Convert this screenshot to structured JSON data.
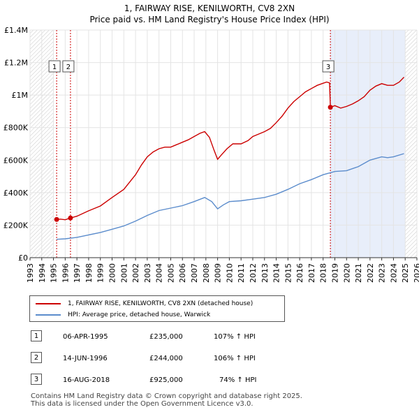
{
  "title_line1": "1, FAIRWAY RISE, KENILWORTH, CV8 2XN",
  "title_line2": "Price paid vs. HM Land Registry's House Price Index (HPI)",
  "colors": {
    "property": "#cc0000",
    "hpi": "#5b8ccc",
    "band": "#e8eefa",
    "marker_line": "#cc0000"
  },
  "chart_data": {
    "type": "line",
    "xlim": [
      1993,
      2026
    ],
    "ylim": [
      0,
      1400000
    ],
    "x_ticks": [
      "1993",
      "1994",
      "1995",
      "1996",
      "1997",
      "1998",
      "1999",
      "2000",
      "2001",
      "2002",
      "2003",
      "2004",
      "2005",
      "2006",
      "2007",
      "2008",
      "2009",
      "2010",
      "2011",
      "2012",
      "2013",
      "2014",
      "2015",
      "2016",
      "2017",
      "2018",
      "2019",
      "2020",
      "2021",
      "2022",
      "2023",
      "2024",
      "2025",
      "2026"
    ],
    "y_ticks": [
      {
        "value": 0,
        "label": "£0"
      },
      {
        "value": 200000,
        "label": "£200K"
      },
      {
        "value": 400000,
        "label": "£400K"
      },
      {
        "value": 600000,
        "label": "£600K"
      },
      {
        "value": 800000,
        "label": "£800K"
      },
      {
        "value": 1000000,
        "label": "£1M"
      },
      {
        "value": 1200000,
        "label": "£1.2M"
      },
      {
        "value": 1400000,
        "label": "£1.4M"
      }
    ],
    "hatch_before": 1995.0,
    "hatch_after": 2025.0,
    "band": [
      2018.6,
      2025.0
    ],
    "series": [
      {
        "name": "1, FAIRWAY RISE, KENILWORTH, CV8 2XN (detached house)",
        "points": [
          [
            1995.27,
            235000
          ],
          [
            1995.6,
            237000
          ],
          [
            1996.0,
            233000
          ],
          [
            1996.45,
            244000
          ],
          [
            1997.0,
            255000
          ],
          [
            1998.0,
            288000
          ],
          [
            1999.0,
            318000
          ],
          [
            2000.0,
            370000
          ],
          [
            2001.0,
            420000
          ],
          [
            2002.0,
            510000
          ],
          [
            2002.5,
            570000
          ],
          [
            2003.0,
            620000
          ],
          [
            2003.5,
            650000
          ],
          [
            2004.0,
            670000
          ],
          [
            2004.5,
            680000
          ],
          [
            2005.0,
            680000
          ],
          [
            2005.5,
            695000
          ],
          [
            2006.0,
            710000
          ],
          [
            2006.5,
            725000
          ],
          [
            2007.0,
            745000
          ],
          [
            2007.5,
            765000
          ],
          [
            2007.9,
            775000
          ],
          [
            2008.3,
            740000
          ],
          [
            2008.7,
            660000
          ],
          [
            2009.0,
            605000
          ],
          [
            2009.3,
            630000
          ],
          [
            2009.8,
            670000
          ],
          [
            2010.3,
            700000
          ],
          [
            2011.0,
            700000
          ],
          [
            2011.6,
            720000
          ],
          [
            2012.0,
            745000
          ],
          [
            2012.5,
            760000
          ],
          [
            2013.0,
            775000
          ],
          [
            2013.5,
            795000
          ],
          [
            2014.0,
            830000
          ],
          [
            2014.5,
            870000
          ],
          [
            2015.0,
            920000
          ],
          [
            2015.5,
            960000
          ],
          [
            2016.0,
            990000
          ],
          [
            2016.5,
            1020000
          ],
          [
            2017.0,
            1040000
          ],
          [
            2017.5,
            1060000
          ],
          [
            2017.9,
            1070000
          ],
          [
            2018.3,
            1080000
          ],
          [
            2018.55,
            1075000
          ],
          [
            2018.62,
            925000
          ],
          [
            2019.0,
            935000
          ],
          [
            2019.5,
            920000
          ],
          [
            2020.0,
            930000
          ],
          [
            2020.5,
            945000
          ],
          [
            2021.0,
            965000
          ],
          [
            2021.5,
            990000
          ],
          [
            2022.0,
            1030000
          ],
          [
            2022.5,
            1055000
          ],
          [
            2023.0,
            1070000
          ],
          [
            2023.5,
            1060000
          ],
          [
            2024.0,
            1060000
          ],
          [
            2024.5,
            1080000
          ],
          [
            2024.9,
            1110000
          ]
        ]
      },
      {
        "name": "HPI: Average price, detached house, Warwick",
        "points": [
          [
            1995.27,
            113000
          ],
          [
            1996.0,
            116000
          ],
          [
            1997.0,
            125000
          ],
          [
            1998.0,
            140000
          ],
          [
            1999.0,
            155000
          ],
          [
            2000.0,
            175000
          ],
          [
            2001.0,
            195000
          ],
          [
            2002.0,
            225000
          ],
          [
            2003.0,
            260000
          ],
          [
            2004.0,
            290000
          ],
          [
            2005.0,
            305000
          ],
          [
            2006.0,
            320000
          ],
          [
            2007.0,
            345000
          ],
          [
            2007.9,
            370000
          ],
          [
            2008.5,
            345000
          ],
          [
            2009.0,
            300000
          ],
          [
            2009.5,
            325000
          ],
          [
            2010.0,
            345000
          ],
          [
            2011.0,
            350000
          ],
          [
            2012.0,
            360000
          ],
          [
            2013.0,
            370000
          ],
          [
            2014.0,
            390000
          ],
          [
            2015.0,
            420000
          ],
          [
            2016.0,
            455000
          ],
          [
            2017.0,
            480000
          ],
          [
            2018.0,
            510000
          ],
          [
            2019.0,
            530000
          ],
          [
            2020.0,
            535000
          ],
          [
            2021.0,
            560000
          ],
          [
            2022.0,
            600000
          ],
          [
            2023.0,
            620000
          ],
          [
            2023.5,
            615000
          ],
          [
            2024.0,
            620000
          ],
          [
            2024.9,
            640000
          ]
        ]
      }
    ],
    "sales": [
      {
        "label": "1",
        "x": 1995.27,
        "y": 235000
      },
      {
        "label": "2",
        "x": 1996.45,
        "y": 244000
      },
      {
        "label": "3",
        "x": 2018.62,
        "y": 925000
      }
    ]
  },
  "legend": {
    "property": "1, FAIRWAY RISE, KENILWORTH, CV8 2XN (detached house)",
    "hpi": "HPI: Average price, detached house, Warwick"
  },
  "transactions": [
    {
      "num": "1",
      "date": "06-APR-1995",
      "price": "£235,000",
      "hpi": "107% ↑ HPI"
    },
    {
      "num": "2",
      "date": "14-JUN-1996",
      "price": "£244,000",
      "hpi": "106% ↑ HPI"
    },
    {
      "num": "3",
      "date": "16-AUG-2018",
      "price": "£925,000",
      "hpi": "74% ↑ HPI"
    }
  ],
  "footer_line1": "Contains HM Land Registry data © Crown copyright and database right 2025.",
  "footer_line2": "This data is licensed under the Open Government Licence v3.0."
}
